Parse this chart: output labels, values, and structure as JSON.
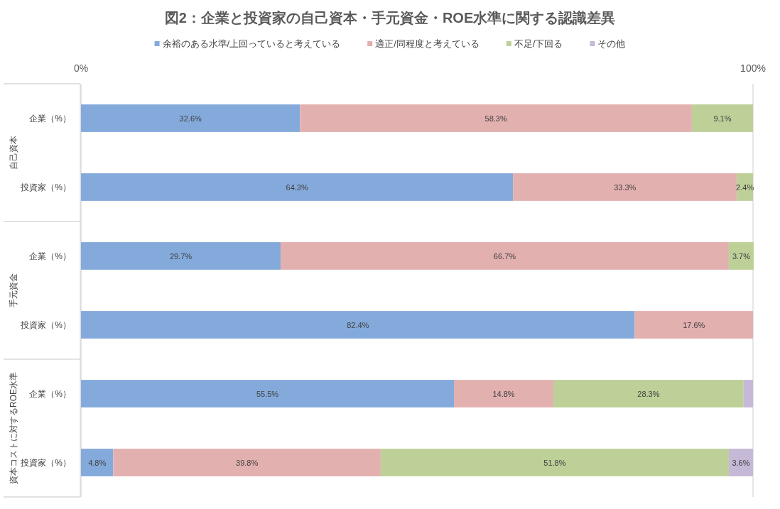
{
  "chart_data": {
    "type": "bar",
    "orientation": "horizontal",
    "stacked": true,
    "title": "図2：企業と投資家の自己資本・手元資金・ROE水準に関する認識差異",
    "categories": [
      "企業（%）",
      "投資家（%）",
      "企業（%）",
      "投資家（%）",
      "企業（%）",
      "投資家（%）"
    ],
    "annotations": [
      "自己資本",
      "手元資金",
      "資本コストに対するROE水準"
    ],
    "series": [
      {
        "name": "余裕のある水準/上回っていると考えている",
        "color": "#84aadb",
        "values": [
          32.6,
          64.3,
          29.7,
          82.4,
          55.5,
          4.8
        ],
        "value_labels": [
          "32.6%",
          "64.3%",
          "29.7%",
          "82.4%",
          "55.5%",
          "4.8%"
        ]
      },
      {
        "name": "適正/同程度と考えている",
        "color": "#e3b0b0",
        "values": [
          58.3,
          33.3,
          66.7,
          17.6,
          14.8,
          39.8
        ],
        "value_labels": [
          "58.3%",
          "33.3%",
          "66.7%",
          "17.6%",
          "14.8%",
          "39.8%"
        ]
      },
      {
        "name": "不足/下回る",
        "color": "#bdd097",
        "values": [
          9.1,
          2.4,
          3.7,
          null,
          28.3,
          51.8
        ],
        "value_labels": [
          "9.1%",
          "2.4%",
          "3.7%",
          null,
          "28.3%",
          "51.8%"
        ]
      },
      {
        "name": "その他",
        "color": "#c5b9d7",
        "values": [
          null,
          null,
          null,
          null,
          1.4,
          3.6
        ],
        "value_labels": [
          null,
          null,
          null,
          null,
          null,
          "3.6%"
        ]
      }
    ],
    "xlim": [
      0,
      100
    ],
    "xticks": [
      {
        "value": 0,
        "label": "0%"
      },
      {
        "value": 100,
        "label": "100%"
      }
    ],
    "grid": "x",
    "legend": "top"
  }
}
